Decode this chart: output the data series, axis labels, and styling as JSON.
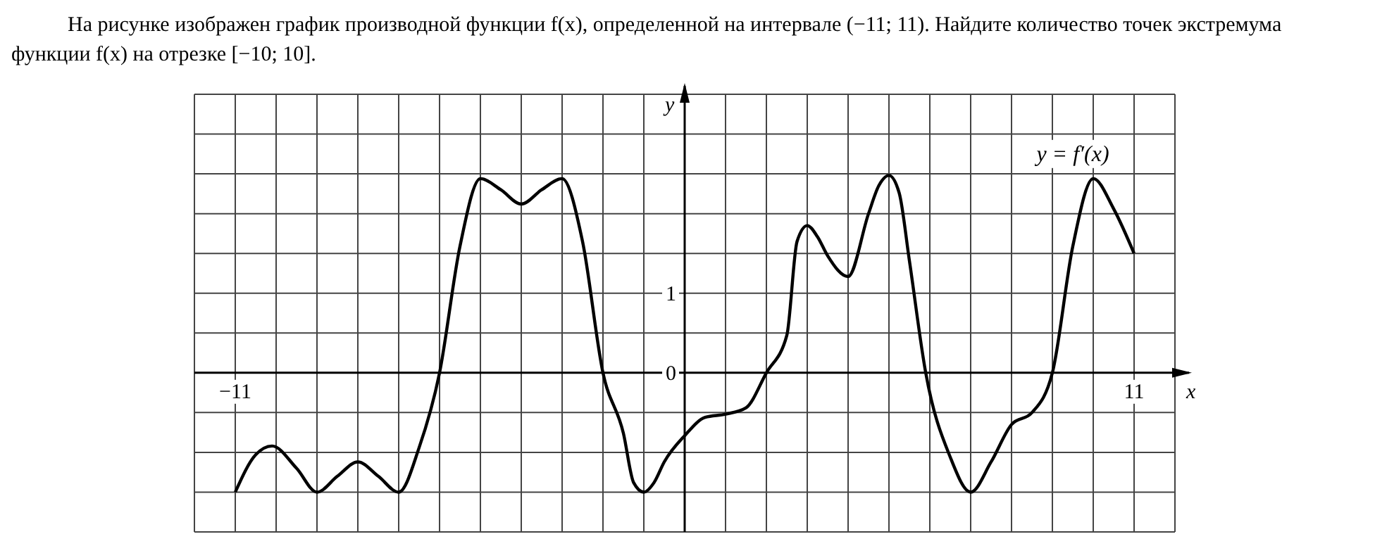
{
  "chart_data": {
    "type": "line",
    "title": "На рисунке изображен график производной функции f(x), определенной на интервале (−11; 11). Найдите количество точек экстремума функции f(x) на отрезке [−10; 10].",
    "xlabel": "x",
    "ylabel": "y",
    "x": [
      -11,
      -10.5,
      -10.1,
      -9.5,
      -9,
      -8.5,
      -8,
      -7.5,
      -7,
      -6.5,
      -6,
      -5.5,
      -5,
      -4.5,
      -4,
      -3.5,
      -3,
      -2.5,
      -2,
      -1.5,
      -1.25,
      -1,
      -0.75,
      -0.5,
      0,
      0.5,
      1,
      1.5,
      2,
      2.5,
      2.75,
      3,
      3.25,
      3.5,
      4,
      4.5,
      4.75,
      5,
      5.25,
      5.5,
      5.9,
      6.5,
      7,
      7.5,
      8,
      8.5,
      9,
      9.5,
      10,
      10.5,
      11
    ],
    "series": [
      {
        "color": "#000000",
        "values": [
          -1.5,
          -1.03,
          -0.92,
          -1.2,
          -1.5,
          -1.3,
          -1.12,
          -1.3,
          -1.5,
          -0.94,
          0,
          1.59,
          2.44,
          2.3,
          2.12,
          2.3,
          2.44,
          1.65,
          0,
          -0.76,
          -1.38,
          -1.5,
          -1.38,
          -1.12,
          -0.79,
          -0.56,
          -0.52,
          -0.44,
          0,
          0.47,
          1.65,
          1.85,
          1.71,
          1.47,
          1.21,
          2.0,
          2.35,
          2.48,
          2.26,
          1.41,
          0,
          -1.06,
          -1.5,
          -1.12,
          -0.65,
          -0.5,
          0,
          1.59,
          2.44,
          2.06,
          1.5
        ]
      }
    ],
    "annotations": [
      "y = f′(x)"
    ],
    "xlim": [
      -12,
      12
    ],
    "xticks": [
      {
        "value": -12,
        "label": null
      },
      {
        "value": -11,
        "label": "−11"
      },
      {
        "value": -10,
        "label": null
      },
      {
        "value": -9,
        "label": null
      },
      {
        "value": -8,
        "label": null
      },
      {
        "value": -7,
        "label": null
      },
      {
        "value": -6,
        "label": null
      },
      {
        "value": -5,
        "label": null
      },
      {
        "value": -4,
        "label": null
      },
      {
        "value": -3,
        "label": null
      },
      {
        "value": -2,
        "label": null
      },
      {
        "value": -1,
        "label": null
      },
      {
        "value": 0,
        "label": null
      },
      {
        "value": 1,
        "label": null
      },
      {
        "value": 2,
        "label": null
      },
      {
        "value": 3,
        "label": null
      },
      {
        "value": 4,
        "label": null
      },
      {
        "value": 5,
        "label": null
      },
      {
        "value": 6,
        "label": null
      },
      {
        "value": 7,
        "label": null
      },
      {
        "value": 8,
        "label": null
      },
      {
        "value": 9,
        "label": null
      },
      {
        "value": 10,
        "label": null
      },
      {
        "value": 11,
        "label": "11"
      },
      {
        "value": 12,
        "label": null
      }
    ],
    "ylim": [
      -2,
      3.5
    ],
    "yticks": [
      {
        "value": -2,
        "label": null
      },
      {
        "value": -1.5,
        "label": null
      },
      {
        "value": -1,
        "label": null
      },
      {
        "value": -0.5,
        "label": null
      },
      {
        "value": 0,
        "label": "0"
      },
      {
        "value": 0.5,
        "label": null
      },
      {
        "value": 1,
        "label": "1"
      },
      {
        "value": 1.5,
        "label": null
      },
      {
        "value": 2,
        "label": null
      },
      {
        "value": 2.5,
        "label": null
      },
      {
        "value": 3,
        "label": null
      },
      {
        "value": 3.5,
        "label": null
      }
    ],
    "grid": true,
    "marker": "none",
    "line_style": "solid"
  }
}
